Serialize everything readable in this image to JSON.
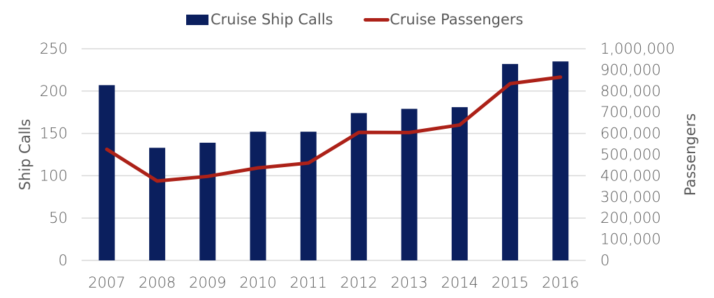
{
  "chart_data": {
    "type": "bar+line",
    "title": "",
    "categories": [
      "2007",
      "2008",
      "2009",
      "2010",
      "2011",
      "2012",
      "2013",
      "2014",
      "2015",
      "2016"
    ],
    "series": [
      {
        "name": "Cruise Ship Calls",
        "type": "bar",
        "axis": "left",
        "color": "#0b1f5e",
        "values": [
          207,
          133,
          139,
          152,
          152,
          174,
          179,
          181,
          232,
          235
        ]
      },
      {
        "name": "Cruise Passengers",
        "type": "line",
        "axis": "right",
        "color": "#ac2118",
        "values": [
          525000,
          375000,
          397000,
          437000,
          460000,
          605000,
          604000,
          640000,
          835000,
          866000
        ]
      }
    ],
    "xlabel": "",
    "ylabel": "Ship Calls",
    "y2label": "Passengers",
    "ylim": [
      0,
      250
    ],
    "y2lim": [
      0,
      1000000
    ],
    "yticks": [
      "0",
      "50",
      "100",
      "150",
      "200",
      "250"
    ],
    "y2ticks": [
      "0",
      "100,000",
      "200,000",
      "300,000",
      "400,000",
      "500,000",
      "600,000",
      "700,000",
      "800,000",
      "900,000",
      "1,000,000"
    ],
    "grid": true,
    "legend_position": "top-center"
  }
}
